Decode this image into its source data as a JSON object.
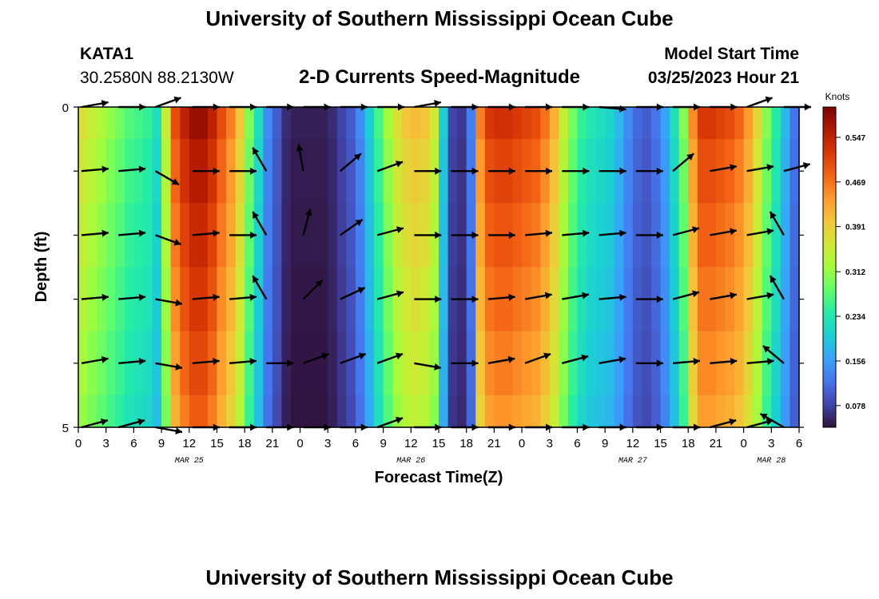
{
  "header": {
    "title": "University of Southern Mississippi Ocean Cube",
    "station_id": "KATA1",
    "station_coords": "30.2580N  88.2130W",
    "plot_title": "2-D Currents Speed-Magnitude",
    "model_label": "Model Start Time",
    "model_time": "03/25/2023 Hour 21"
  },
  "footer": {
    "title": "University of Southern Mississippi Ocean Cube"
  },
  "chart_data": {
    "type": "heatmap",
    "title": "2-D Currents Speed-Magnitude",
    "xlabel": "Forecast Time(Z)",
    "ylabel": "Depth (ft)",
    "xlim": [
      0,
      78
    ],
    "ylim": [
      0,
      5
    ],
    "y_tick_labels": [
      "0",
      "5"
    ],
    "x_tick_labels": [
      "0",
      "3",
      "6",
      "9",
      "12",
      "15",
      "18",
      "21",
      "0",
      "3",
      "6",
      "9",
      "12",
      "15",
      "18",
      "21",
      "0",
      "3",
      "6",
      "9",
      "12",
      "15",
      "18",
      "21",
      "0",
      "3",
      "6"
    ],
    "date_labels": [
      {
        "label": "MAR 25",
        "x": 12
      },
      {
        "label": "MAR 26",
        "x": 36
      },
      {
        "label": "MAR 27",
        "x": 60
      },
      {
        "label": "MAR 28",
        "x": 75
      }
    ],
    "colorbar": {
      "unit": "Knots",
      "min": 0.04,
      "max": 0.6,
      "ticks": [
        "0.078",
        "0.156",
        "0.234",
        "0.312",
        "0.391",
        "0.469",
        "0.547"
      ],
      "colors": [
        "#30123b",
        "#4145ab",
        "#4675ed",
        "#39a2fc",
        "#1bcfd4",
        "#24eca6",
        "#61fc6c",
        "#a4fc3b",
        "#d1e834",
        "#f3c63a",
        "#fe9b2d",
        "#f36315",
        "#d93806",
        "#b11901",
        "#7a0402"
      ]
    },
    "depth_rows": [
      0,
      1,
      2,
      3,
      4,
      5
    ],
    "time_columns_hours": [
      0,
      1,
      2,
      3,
      4,
      5,
      6,
      7,
      8,
      9,
      10,
      11,
      12,
      13,
      14,
      15,
      16,
      17,
      18,
      19,
      20,
      21,
      22,
      23,
      24,
      25,
      26,
      27,
      28,
      29,
      30,
      31,
      32,
      33,
      34,
      35,
      36,
      37,
      38,
      39,
      40,
      41,
      42,
      43,
      44,
      45,
      46,
      47,
      48,
      49,
      50,
      51,
      52,
      53,
      54,
      55,
      56,
      57,
      58,
      59,
      60,
      61,
      62,
      63,
      64,
      65,
      66,
      67,
      68,
      69,
      70,
      71,
      72,
      73,
      74,
      75,
      76,
      77
    ],
    "speed_profile_by_hour": [
      0.37,
      0.35,
      0.33,
      0.31,
      0.29,
      0.27,
      0.26,
      0.25,
      0.22,
      0.35,
      0.5,
      0.55,
      0.58,
      0.58,
      0.55,
      0.5,
      0.46,
      0.4,
      0.3,
      0.22,
      0.14,
      0.1,
      0.06,
      0.05,
      0.05,
      0.05,
      0.05,
      0.06,
      0.08,
      0.1,
      0.14,
      0.2,
      0.26,
      0.32,
      0.37,
      0.4,
      0.41,
      0.4,
      0.36,
      0.2,
      0.08,
      0.07,
      0.13,
      0.46,
      0.52,
      0.53,
      0.53,
      0.52,
      0.51,
      0.5,
      0.47,
      0.42,
      0.35,
      0.29,
      0.25,
      0.23,
      0.22,
      0.21,
      0.18,
      0.14,
      0.11,
      0.1,
      0.12,
      0.16,
      0.22,
      0.3,
      0.45,
      0.52,
      0.52,
      0.51,
      0.5,
      0.48,
      0.44,
      0.38,
      0.3,
      0.24,
      0.18,
      0.12
    ],
    "depth_factor": [
      1.0,
      0.96,
      0.93,
      0.9,
      0.87,
      0.84
    ],
    "vector_columns_hours": [
      0,
      4,
      8,
      12,
      16,
      20,
      24,
      28,
      32,
      36,
      40,
      44,
      48,
      52,
      56,
      60,
      64,
      68,
      72,
      76
    ],
    "vector_rows": [
      0,
      1,
      2,
      3,
      4,
      5
    ],
    "vector_direction_deg": [
      [
        10,
        0,
        20,
        0,
        0,
        0,
        0,
        0,
        0,
        10,
        0,
        0,
        0,
        0,
        -5,
        0,
        0,
        0,
        20,
        0
      ],
      [
        5,
        5,
        -30,
        0,
        0,
        120,
        100,
        40,
        20,
        0,
        0,
        0,
        0,
        0,
        0,
        0,
        40,
        10,
        10,
        15
      ],
      [
        5,
        5,
        -20,
        5,
        0,
        120,
        75,
        35,
        15,
        0,
        0,
        0,
        5,
        5,
        5,
        0,
        15,
        10,
        10,
        120
      ],
      [
        5,
        5,
        -10,
        5,
        5,
        120,
        45,
        25,
        15,
        0,
        0,
        5,
        10,
        10,
        5,
        0,
        15,
        10,
        10,
        120
      ],
      [
        10,
        5,
        -10,
        5,
        5,
        0,
        20,
        20,
        20,
        -10,
        0,
        10,
        20,
        15,
        10,
        0,
        5,
        5,
        5,
        140
      ],
      [
        15,
        15,
        -10,
        0,
        0,
        0,
        0,
        0,
        20,
        0,
        0,
        0,
        0,
        0,
        0,
        0,
        0,
        15,
        15,
        150
      ]
    ]
  }
}
